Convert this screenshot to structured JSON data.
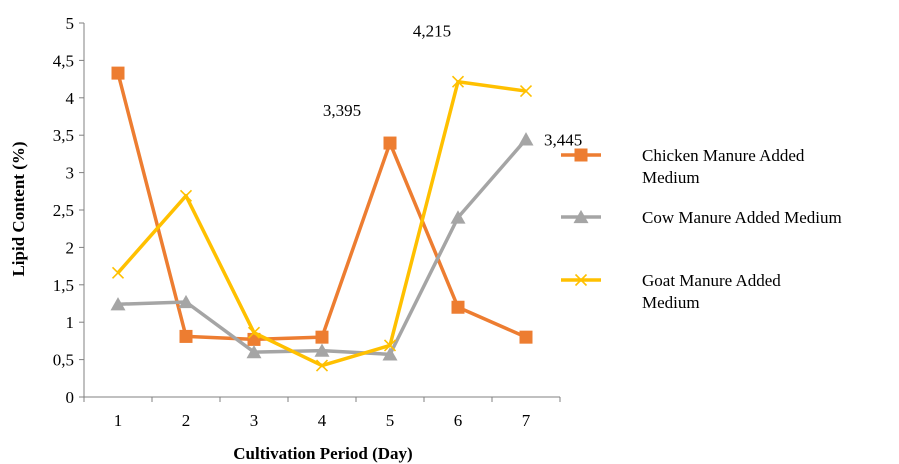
{
  "chart_data": {
    "type": "line",
    "xlabel": "Cultivation Period (Day)",
    "ylabel": "Lipid Content (%)",
    "categories": [
      "1",
      "2",
      "3",
      "4",
      "5",
      "6",
      "7"
    ],
    "ylim": [
      0,
      5
    ],
    "yticks": [
      "0",
      "0,5",
      "1",
      "1,5",
      "2",
      "2,5",
      "3",
      "3,5",
      "4",
      "4,5",
      "5"
    ],
    "grid": false,
    "legend_position": "right",
    "series": [
      {
        "name": "Chicken Manure Added Medium",
        "name_lines": [
          "Chicken Manure Added",
          "Medium"
        ],
        "color": "#ED7D31",
        "marker": "square",
        "values": [
          4.33,
          0.81,
          0.77,
          0.8,
          3.395,
          1.2,
          0.8
        ]
      },
      {
        "name": "Cow Manure Added Medium",
        "name_lines": [
          "Cow Manure Added Medium"
        ],
        "color": "#A5A5A5",
        "marker": "triangle",
        "values": [
          1.24,
          1.27,
          0.6,
          0.62,
          0.57,
          2.4,
          3.445
        ]
      },
      {
        "name": "Goat Manure Added Medium",
        "name_lines": [
          "Goat Manure Added",
          "Medium"
        ],
        "color": "#FFC000",
        "marker": "x",
        "values": [
          1.66,
          2.69,
          0.86,
          0.42,
          0.69,
          4.215,
          4.09
        ]
      }
    ],
    "data_labels": [
      {
        "series": 0,
        "index": 4,
        "text": "3,395"
      },
      {
        "series": 2,
        "index": 5,
        "text": "4,215"
      },
      {
        "series": 1,
        "index": 6,
        "text": "3,445"
      }
    ]
  }
}
